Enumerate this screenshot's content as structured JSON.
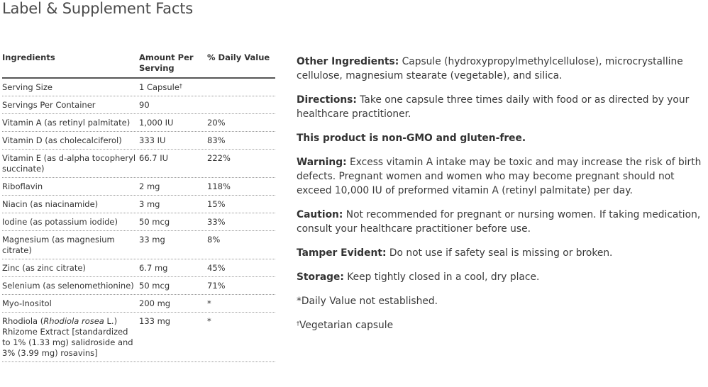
{
  "title": "Label & Supplement Facts",
  "table": {
    "headers": {
      "ingredient": "Ingredients",
      "amount": "Amount Per Serving",
      "dv": "% Daily Value"
    },
    "rows": [
      {
        "ingredient": "Serving Size",
        "amount": "1 Capsule",
        "amount_sup": "†",
        "dv": ""
      },
      {
        "ingredient": "Servings Per Container",
        "amount": "90",
        "dv": ""
      },
      {
        "ingredient": "Vitamin A (as retinyl palmitate)",
        "amount": "1,000 IU",
        "dv": "20%"
      },
      {
        "ingredient": "Vitamin D (as cholecalciferol)",
        "amount": "333 IU",
        "dv": "83%"
      },
      {
        "ingredient": "Vitamin E (as d-alpha tocopheryl succinate)",
        "amount": "66.7 IU",
        "dv": "222%"
      },
      {
        "ingredient": "Riboflavin",
        "amount": "2 mg",
        "dv": "118%"
      },
      {
        "ingredient": "Niacin (as niacinamide)",
        "amount": "3 mg",
        "dv": "15%"
      },
      {
        "ingredient": "Iodine (as potassium iodide)",
        "amount": "50 mcg",
        "dv": "33%"
      },
      {
        "ingredient": "Magnesium (as magnesium citrate)",
        "amount": "33 mg",
        "dv": "8%"
      },
      {
        "ingredient": "Zinc (as zinc citrate)",
        "amount": "6.7 mg",
        "dv": "45%"
      },
      {
        "ingredient": "Selenium (as selenomethionine)",
        "amount": "50 mcg",
        "dv": "71%"
      },
      {
        "ingredient": "Myo-Inositol",
        "amount": "200 mg",
        "dv": "*"
      },
      {
        "ingredient_prefix": "Rhodiola (",
        "ingredient_italic": "Rhodiola rosea",
        "ingredient_suffix": " L.) Rhizome Extract [standardized to 1% (1.33 mg) salidroside and 3% (3.99 mg) rosavins]",
        "amount": "133 mg",
        "dv": "*"
      }
    ]
  },
  "info": {
    "other_ingredients_label": "Other Ingredients:",
    "other_ingredients_text": " Capsule (hydroxypropylmethylcellulose), microcrystalline cellulose, magnesium stearate (vegetable), and silica.",
    "directions_label": "Directions:",
    "directions_text": " Take one capsule three times daily with food or as directed by your healthcare practitioner.",
    "non_gmo": "This product is non-GMO and gluten-free.",
    "warning_label": "Warning:",
    "warning_text": " Excess vitamin A intake may be toxic and may increase the risk of birth defects. Pregnant women and women who may become pregnant should not exceed 10,000 IU of preformed vitamin A (retinyl palmitate) per day.",
    "caution_label": "Caution:",
    "caution_text": " Not recommended for pregnant or nursing women. If taking medication, consult your healthcare practitioner before use.",
    "tamper_label": "Tamper Evident:",
    "tamper_text": " Do not use if safety seal is missing or broken.",
    "storage_label": "Storage:",
    "storage_text": " Keep tightly closed in a cool, dry place.",
    "dv_note": "*Daily Value not established.",
    "veg_sup": "†",
    "veg_note": "Vegetarian capsule"
  }
}
